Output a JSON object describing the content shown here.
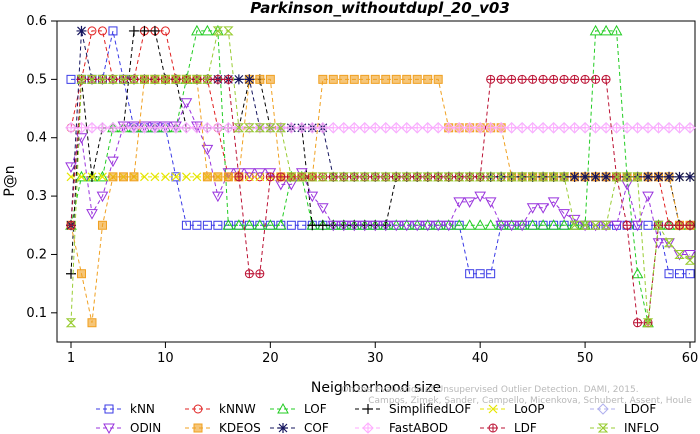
{
  "chart_data": {
    "type": "line",
    "title": "Parkinson_withoutdupl_20_v03",
    "xlabel": "Neighborhood size",
    "ylabel": "P@n",
    "xlim": [
      0,
      60
    ],
    "ylim": [
      0.05,
      0.6
    ],
    "xticks": [
      1,
      10,
      20,
      30,
      40,
      50,
      60
    ],
    "yticks": [
      0.1,
      0.2,
      0.3,
      0.4,
      0.5,
      0.6
    ],
    "grid": false,
    "legend_position": "bottom",
    "credit": "Campos, Zimek, Sander, Campello, Micenkova, Schubert, Assent, Houle  On the Evaluation of Unsupervised Outlier Detection. DAMI, 2015.",
    "x": [
      1,
      2,
      3,
      4,
      5,
      6,
      7,
      8,
      9,
      10,
      11,
      12,
      13,
      14,
      15,
      16,
      17,
      18,
      19,
      20,
      21,
      22,
      23,
      24,
      25,
      26,
      27,
      28,
      29,
      30,
      31,
      32,
      33,
      34,
      35,
      36,
      37,
      38,
      39,
      40,
      41,
      42,
      43,
      44,
      45,
      46,
      47,
      48,
      49,
      50,
      51,
      52,
      53,
      54,
      55,
      56,
      57,
      58,
      59,
      60
    ],
    "series": [
      {
        "name": "kNN",
        "color": "#3a3ae6",
        "marker": "square",
        "values": [
          0.5,
          0.5,
          0.5,
          0.5,
          0.583,
          0.5,
          0.417,
          0.417,
          0.417,
          0.417,
          0.333,
          0.25,
          0.25,
          0.25,
          0.25,
          0.25,
          0.25,
          0.25,
          0.25,
          0.25,
          0.25,
          0.25,
          0.25,
          0.25,
          0.25,
          0.25,
          0.25,
          0.25,
          0.25,
          0.25,
          0.25,
          0.25,
          0.25,
          0.25,
          0.25,
          0.25,
          0.25,
          0.25,
          0.167,
          0.167,
          0.167,
          0.25,
          0.25,
          0.25,
          0.25,
          0.25,
          0.25,
          0.25,
          0.25,
          0.25,
          0.25,
          0.25,
          0.25,
          0.25,
          0.25,
          0.25,
          0.25,
          0.167,
          0.167,
          0.167
        ]
      },
      {
        "name": "kNNW",
        "color": "#e02020",
        "marker": "circle",
        "values": [
          0.417,
          0.5,
          0.583,
          0.583,
          0.5,
          0.5,
          0.5,
          0.583,
          0.583,
          0.583,
          0.5,
          0.5,
          0.5,
          0.5,
          0.417,
          0.333,
          0.333,
          0.333,
          0.333,
          0.333,
          0.333,
          0.333,
          0.333,
          0.333,
          0.333,
          0.333,
          0.333,
          0.333,
          0.333,
          0.333,
          0.333,
          0.333,
          0.333,
          0.333,
          0.333,
          0.333,
          0.333,
          0.333,
          0.333,
          0.333,
          0.333,
          0.333,
          0.333,
          0.333,
          0.333,
          0.333,
          0.333,
          0.333,
          0.333,
          0.333,
          0.333,
          0.333,
          0.333,
          0.333,
          0.333,
          0.333,
          0.333,
          0.25,
          0.25,
          0.25
        ]
      },
      {
        "name": "LOF",
        "color": "#22cc22",
        "marker": "triangle",
        "values": [
          0.25,
          0.333,
          0.333,
          0.333,
          0.417,
          0.417,
          0.417,
          0.417,
          0.417,
          0.417,
          0.417,
          0.5,
          0.583,
          0.583,
          0.583,
          0.25,
          0.25,
          0.25,
          0.25,
          0.25,
          0.25,
          0.333,
          0.333,
          0.25,
          0.25,
          0.25,
          0.25,
          0.25,
          0.25,
          0.25,
          0.25,
          0.25,
          0.25,
          0.25,
          0.25,
          0.25,
          0.25,
          0.25,
          0.25,
          0.25,
          0.25,
          0.25,
          0.25,
          0.25,
          0.25,
          0.25,
          0.25,
          0.25,
          0.25,
          0.25,
          0.583,
          0.583,
          0.583,
          0.333,
          0.167,
          0.083,
          0.25,
          0.25,
          0.25,
          0.25
        ]
      },
      {
        "name": "SimplifiedLOF",
        "color": "#000000",
        "marker": "plus",
        "values": [
          0.167,
          0.5,
          0.333,
          0.417,
          0.417,
          0.417,
          0.583,
          0.583,
          0.583,
          0.5,
          0.5,
          0.417,
          0.417,
          0.417,
          0.417,
          0.417,
          0.417,
          0.5,
          0.5,
          0.417,
          0.417,
          0.417,
          0.417,
          0.25,
          0.25,
          0.25,
          0.25,
          0.25,
          0.25,
          0.25,
          0.25,
          0.333,
          0.333,
          0.333,
          0.333,
          0.333,
          0.333,
          0.333,
          0.333,
          0.333,
          0.333,
          0.333,
          0.333,
          0.333,
          0.333,
          0.333,
          0.333,
          0.333,
          0.333,
          0.333,
          0.333,
          0.333,
          0.333,
          0.333,
          0.333,
          0.333,
          0.333,
          0.333,
          0.25,
          0.25
        ]
      },
      {
        "name": "LoOP",
        "color": "#e6e600",
        "marker": "x",
        "values": [
          0.333,
          0.333,
          0.333,
          0.333,
          0.333,
          0.333,
          0.333,
          0.333,
          0.333,
          0.333,
          0.333,
          0.333,
          0.333,
          0.333,
          0.333,
          0.333,
          0.333,
          0.333,
          0.333,
          0.333,
          0.333,
          0.333,
          0.333,
          0.333,
          0.333,
          0.333,
          0.333,
          0.333,
          0.333,
          0.333,
          0.333,
          0.333,
          0.333,
          0.333,
          0.333,
          0.333,
          0.333,
          0.333,
          0.333,
          0.333,
          0.333,
          0.333,
          0.333,
          0.333,
          0.333,
          0.333,
          0.333,
          0.333,
          0.333,
          0.333,
          0.333,
          0.333,
          0.333,
          0.333,
          0.333,
          0.333,
          0.333,
          0.333,
          0.333,
          0.333
        ]
      },
      {
        "name": "LDOF",
        "color": "#b0b0ee",
        "marker": "diamond",
        "values": [
          0.417,
          0.417,
          0.417,
          0.417,
          0.417,
          0.417,
          0.417,
          0.417,
          0.417,
          0.417,
          0.417,
          0.417,
          0.417,
          0.417,
          0.417,
          0.417,
          0.417,
          0.417,
          0.417,
          0.417,
          0.417,
          0.417,
          0.417,
          0.417,
          0.417,
          0.417,
          0.417,
          0.417,
          0.417,
          0.417,
          0.417,
          0.417,
          0.417,
          0.417,
          0.417,
          0.417,
          0.417,
          0.417,
          0.417,
          0.417,
          0.417,
          0.417,
          0.417,
          0.417,
          0.417,
          0.417,
          0.417,
          0.417,
          0.417,
          0.417,
          0.417,
          0.417,
          0.417,
          0.417,
          0.417,
          0.417,
          0.417,
          0.417,
          0.417,
          0.417
        ]
      },
      {
        "name": "ODIN",
        "color": "#9933dd",
        "marker": "triangle-down",
        "values": [
          0.35,
          0.4,
          0.27,
          0.3,
          0.36,
          0.42,
          0.42,
          0.42,
          0.42,
          0.42,
          0.42,
          0.46,
          0.42,
          0.38,
          0.3,
          0.34,
          0.34,
          0.34,
          0.34,
          0.34,
          0.32,
          0.32,
          0.34,
          0.3,
          0.28,
          0.25,
          0.25,
          0.25,
          0.25,
          0.25,
          0.25,
          0.25,
          0.25,
          0.25,
          0.25,
          0.25,
          0.25,
          0.29,
          0.29,
          0.3,
          0.29,
          0.25,
          0.25,
          0.25,
          0.28,
          0.28,
          0.29,
          0.27,
          0.26,
          0.25,
          0.25,
          0.25,
          0.25,
          0.32,
          0.25,
          0.3,
          0.22,
          0.22,
          0.2,
          0.2
        ]
      },
      {
        "name": "KDEOS",
        "color": "#f0a020",
        "marker": "square-filled",
        "values": [
          0.25,
          0.167,
          0.083,
          0.25,
          0.333,
          0.333,
          0.333,
          0.5,
          0.5,
          0.5,
          0.5,
          0.5,
          0.5,
          0.333,
          0.333,
          0.333,
          0.333,
          0.5,
          0.5,
          0.5,
          0.333,
          0.333,
          0.333,
          0.333,
          0.5,
          0.5,
          0.5,
          0.5,
          0.5,
          0.5,
          0.5,
          0.5,
          0.5,
          0.5,
          0.5,
          0.5,
          0.417,
          0.417,
          0.417,
          0.417,
          0.417,
          0.417,
          0.333,
          0.333,
          0.333,
          0.333,
          0.333,
          0.333,
          0.333,
          0.333,
          0.333,
          0.333,
          0.333,
          0.333,
          0.333,
          0.333,
          0.333,
          0.333,
          0.25,
          0.25
        ]
      },
      {
        "name": "COF",
        "color": "#15155e",
        "marker": "asterisk",
        "values": [
          0.25,
          0.583,
          0.5,
          0.5,
          0.5,
          0.5,
          0.5,
          0.5,
          0.5,
          0.5,
          0.5,
          0.5,
          0.5,
          0.5,
          0.5,
          0.5,
          0.5,
          0.5,
          0.417,
          0.417,
          0.417,
          0.417,
          0.417,
          0.417,
          0.417,
          0.333,
          0.333,
          0.333,
          0.333,
          0.333,
          0.333,
          0.333,
          0.333,
          0.333,
          0.333,
          0.333,
          0.333,
          0.333,
          0.333,
          0.333,
          0.333,
          0.333,
          0.333,
          0.333,
          0.333,
          0.333,
          0.333,
          0.333,
          0.333,
          0.333,
          0.333,
          0.333,
          0.333,
          0.333,
          0.333,
          0.333,
          0.333,
          0.333,
          0.333,
          0.333
        ]
      },
      {
        "name": "FastABOD",
        "color": "#ffaaff",
        "marker": "diamond-cross",
        "values": [
          0.417,
          0.417,
          0.417,
          0.417,
          0.417,
          0.417,
          0.417,
          0.417,
          0.417,
          0.417,
          0.417,
          0.417,
          0.417,
          0.417,
          0.417,
          0.417,
          0.417,
          0.417,
          0.417,
          0.417,
          0.417,
          0.417,
          0.417,
          0.417,
          0.417,
          0.417,
          0.417,
          0.417,
          0.417,
          0.417,
          0.417,
          0.417,
          0.417,
          0.417,
          0.417,
          0.417,
          0.417,
          0.417,
          0.417,
          0.417,
          0.417,
          0.417,
          0.417,
          0.417,
          0.417,
          0.417,
          0.417,
          0.417,
          0.417,
          0.417,
          0.417,
          0.417,
          0.417,
          0.417,
          0.417,
          0.417,
          0.417,
          0.417,
          0.417,
          0.417
        ]
      },
      {
        "name": "LDF",
        "color": "#bb1133",
        "marker": "circle-plus",
        "values": [
          0.25,
          0.5,
          0.5,
          0.5,
          0.5,
          0.5,
          0.5,
          0.5,
          0.5,
          0.5,
          0.5,
          0.5,
          0.5,
          0.5,
          0.5,
          0.5,
          0.333,
          0.167,
          0.167,
          0.333,
          0.333,
          0.333,
          0.333,
          0.333,
          0.333,
          0.333,
          0.333,
          0.333,
          0.333,
          0.333,
          0.333,
          0.333,
          0.333,
          0.333,
          0.333,
          0.333,
          0.333,
          0.333,
          0.333,
          0.333,
          0.5,
          0.5,
          0.5,
          0.5,
          0.5,
          0.5,
          0.5,
          0.5,
          0.5,
          0.5,
          0.5,
          0.5,
          0.333,
          0.25,
          0.083,
          0.083,
          0.25,
          0.25,
          0.25,
          0.25
        ]
      },
      {
        "name": "INFLO",
        "color": "#99cc33",
        "marker": "hourglass",
        "values": [
          0.083,
          0.5,
          0.5,
          0.5,
          0.5,
          0.5,
          0.5,
          0.5,
          0.5,
          0.5,
          0.5,
          0.5,
          0.5,
          0.5,
          0.583,
          0.583,
          0.417,
          0.417,
          0.417,
          0.417,
          0.417,
          0.333,
          0.333,
          0.333,
          0.333,
          0.333,
          0.333,
          0.333,
          0.333,
          0.333,
          0.333,
          0.333,
          0.333,
          0.333,
          0.333,
          0.333,
          0.333,
          0.333,
          0.333,
          0.333,
          0.333,
          0.333,
          0.333,
          0.333,
          0.333,
          0.333,
          0.333,
          0.333,
          0.25,
          0.25,
          0.25,
          0.25,
          0.333,
          0.333,
          0.333,
          0.083,
          0.25,
          0.22,
          0.2,
          0.19
        ]
      }
    ]
  }
}
